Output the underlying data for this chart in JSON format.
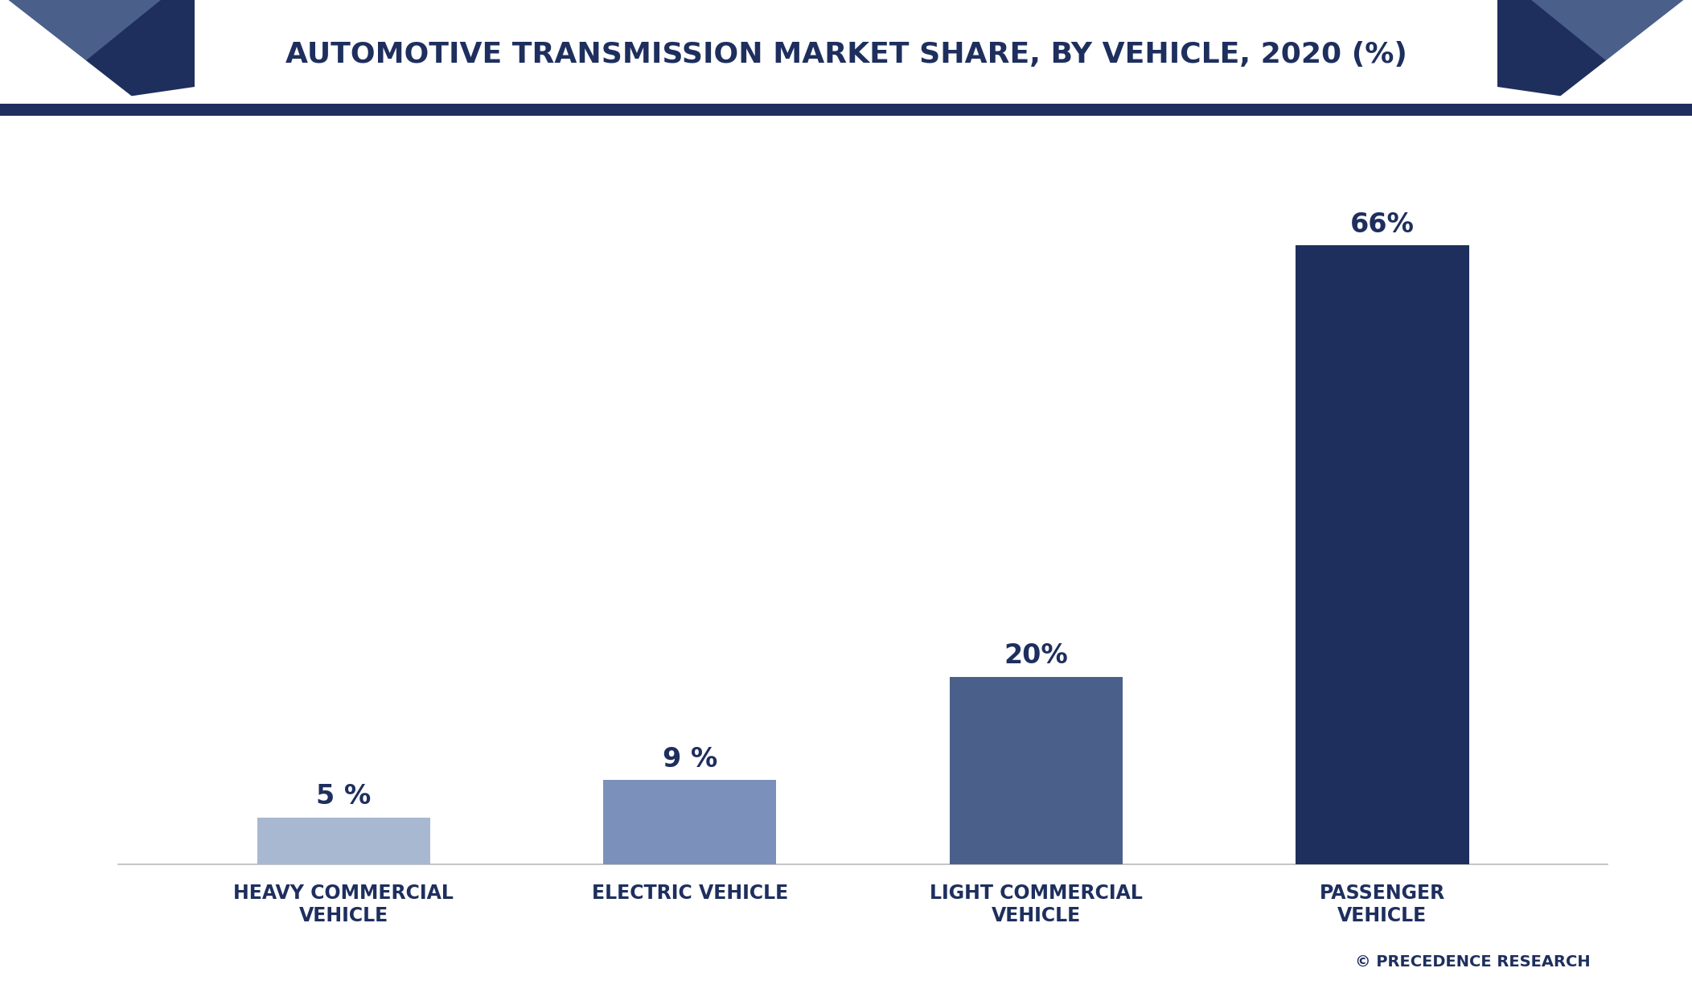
{
  "title": "AUTOMOTIVE TRANSMISSION MARKET SHARE, BY VEHICLE, 2020 (%)",
  "categories": [
    "HEAVY COMMERCIAL\nVEHICLE",
    "ELECTRIC VEHICLE",
    "LIGHT COMMERCIAL\nVEHICLE",
    "PASSENGER\nVEHICLE"
  ],
  "values": [
    5,
    9,
    20,
    66
  ],
  "value_labels": [
    "5 %",
    "9 %",
    "20%",
    "66%"
  ],
  "bar_colors": [
    "#a8b8d0",
    "#7b91bb",
    "#4a5f8a",
    "#1e2f5e"
  ],
  "background_color": "#ffffff",
  "chart_bg_color": "#f5f5f0",
  "title_color": "#1e2f5e",
  "title_fontsize": 26,
  "label_fontsize": 17,
  "value_fontsize": 24,
  "watermark": "© PRECEDENCE RESEARCH",
  "watermark_color": "#1e2f5e",
  "header_dark_color": "#1e2f5e",
  "header_mid_color": "#4a5f8a",
  "ylim": [
    0,
    75
  ],
  "bar_width": 0.5
}
